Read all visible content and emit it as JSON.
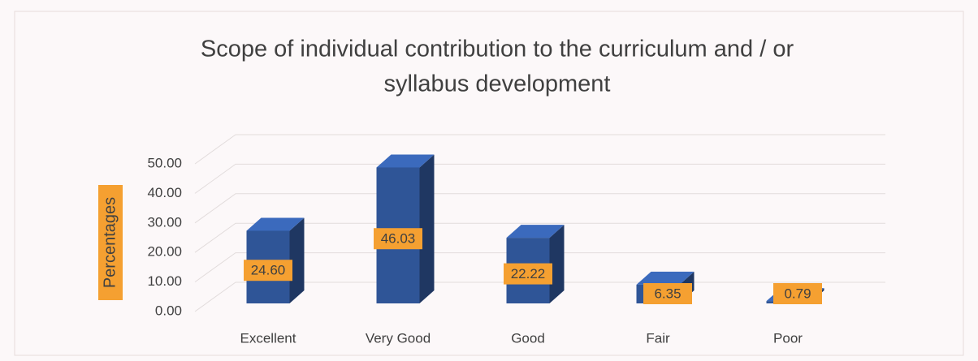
{
  "chart_data": {
    "type": "bar3d",
    "title": "Scope of individual contribution to the curriculum and / or",
    "subtitle": "syllabus development",
    "y_label": "Percentages",
    "categories": [
      "Excellent",
      "Very Good",
      "Good",
      "Fair",
      "Poor"
    ],
    "values": [
      24.6,
      46.03,
      22.22,
      6.35,
      0.79
    ],
    "value_labels": [
      "24.60",
      "46.03",
      "22.22",
      "6.35",
      "0.79"
    ],
    "color": "#2f5597",
    "ylim": [
      0,
      50
    ],
    "yticks": [
      {
        "value": 0,
        "label": "0.00"
      },
      {
        "value": 10,
        "label": "10.00"
      },
      {
        "value": 20,
        "label": "20.00"
      },
      {
        "value": 30,
        "label": "30.00"
      },
      {
        "value": 40,
        "label": "40.00"
      },
      {
        "value": 50,
        "label": "50.00"
      }
    ],
    "grid": true
  }
}
